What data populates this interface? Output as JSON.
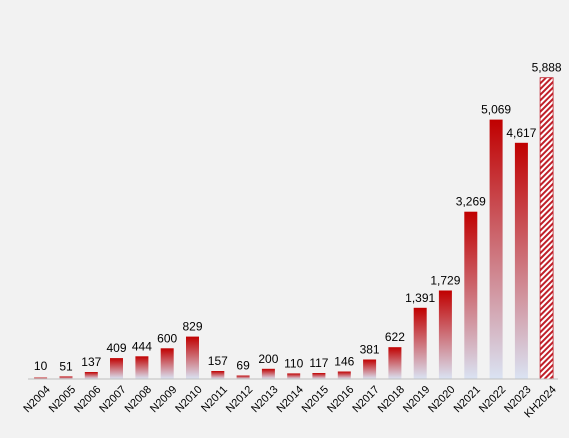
{
  "chart_data": {
    "type": "bar",
    "categories": [
      "N2004",
      "N2005",
      "N2006",
      "N2007",
      "N2008",
      "N2009",
      "N2010",
      "N2011",
      "N2012",
      "N2013",
      "N2014",
      "N2015",
      "N2016",
      "N2017",
      "N2018",
      "N2019",
      "N2020",
      "N2021",
      "N2022",
      "N2023",
      "KH2024"
    ],
    "values": [
      10,
      51,
      137,
      409,
      444,
      600,
      829,
      157,
      69,
      200,
      110,
      117,
      146,
      381,
      622,
      1391,
      1729,
      3269,
      5069,
      4617,
      5888
    ],
    "data_labels": [
      "10",
      "51",
      "137",
      "409",
      "444",
      "600",
      "829",
      "157",
      "69",
      "200",
      "110",
      "117",
      "146",
      "381",
      "622",
      "1,391",
      "1,729",
      "3,269",
      "5,069",
      "4,617",
      "5,888"
    ],
    "title": "",
    "xlabel": "",
    "ylabel": "",
    "ylim": [
      0,
      6000
    ],
    "grid": false,
    "legend": "none",
    "colors": {
      "bar_top": "#c00000",
      "bar_bottom": "#dae3f3",
      "plan_bar_hatch": "#c0202a",
      "plan_bar_bg": "#ffffff",
      "axis": "#bfbfbf",
      "background": "#f2f2f2"
    },
    "highlighted_category": "KH2024"
  }
}
